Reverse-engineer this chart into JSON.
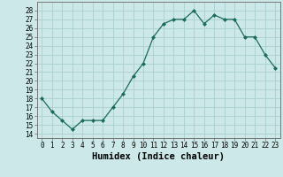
{
  "x": [
    0,
    1,
    2,
    3,
    4,
    5,
    6,
    7,
    8,
    9,
    10,
    11,
    12,
    13,
    14,
    15,
    16,
    17,
    18,
    19,
    20,
    21,
    22,
    23
  ],
  "y": [
    18,
    16.5,
    15.5,
    14.5,
    15.5,
    15.5,
    15.5,
    17,
    18.5,
    20.5,
    22,
    25,
    26.5,
    27,
    27,
    28,
    26.5,
    27.5,
    27,
    27,
    25,
    25,
    23,
    21.5
  ],
  "line_color": "#1a6b5a",
  "marker": "D",
  "marker_size": 2.0,
  "bg_color": "#cce8e8",
  "grid_color": "#aacfcf",
  "xlabel": "Humidex (Indice chaleur)",
  "ylabel": "",
  "xlim": [
    -0.5,
    23.5
  ],
  "ylim": [
    13.5,
    29.0
  ],
  "yticks": [
    14,
    15,
    16,
    17,
    18,
    19,
    20,
    21,
    22,
    23,
    24,
    25,
    26,
    27,
    28
  ],
  "xticks": [
    0,
    1,
    2,
    3,
    4,
    5,
    6,
    7,
    8,
    9,
    10,
    11,
    12,
    13,
    14,
    15,
    16,
    17,
    18,
    19,
    20,
    21,
    22,
    23
  ],
  "xlabel_fontsize": 7.5,
  "tick_fontsize": 5.5,
  "lw": 0.9
}
